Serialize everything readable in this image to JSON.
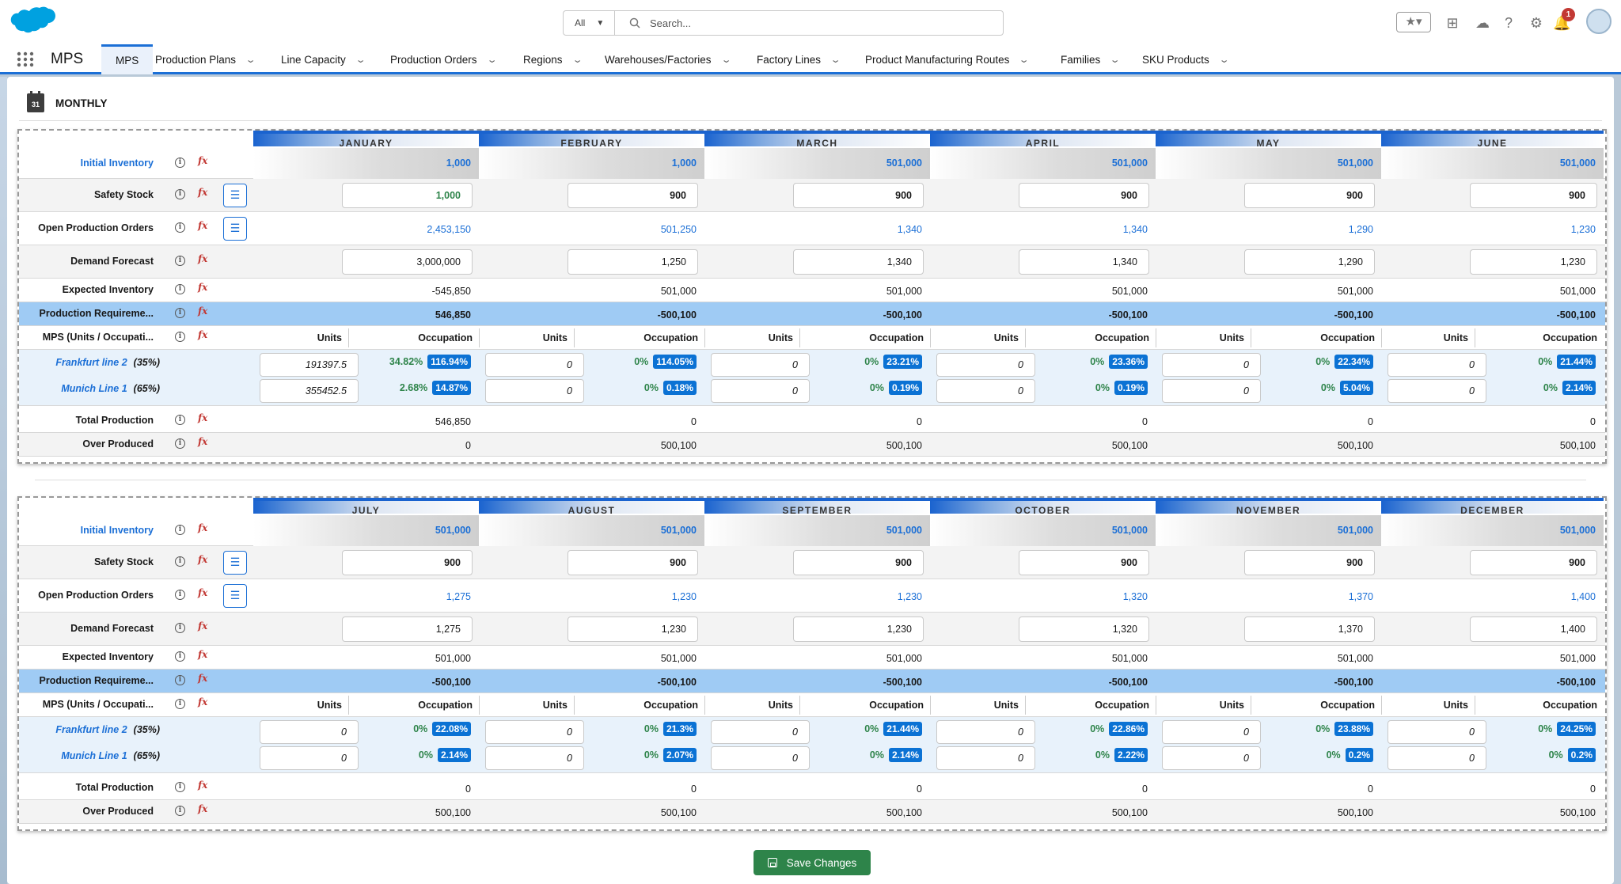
{
  "search": {
    "scope": "All",
    "placeholder": "Search..."
  },
  "notifications": {
    "count": "1"
  },
  "app": {
    "name": "MPS"
  },
  "tabs": [
    {
      "label": "MPS"
    },
    {
      "label": "Production Plans"
    },
    {
      "label": "Line Capacity"
    },
    {
      "label": "Production Orders"
    },
    {
      "label": "Regions"
    },
    {
      "label": "Warehouses/Factories"
    },
    {
      "label": "Factory Lines"
    },
    {
      "label": "Product Manufacturing Routes"
    },
    {
      "label": "Families"
    },
    {
      "label": "SKU Products"
    }
  ],
  "section": {
    "title": "MONTHLY",
    "calendar_day": "31"
  },
  "row_labels": {
    "initial_inventory": "Initial Inventory",
    "safety_stock": "Safety Stock",
    "open_production_orders": "Open Production Orders",
    "demand_forecast": "Demand Forecast",
    "expected_inventory": "Expected Inventory",
    "production_requirement": "Production Requireme...",
    "mps": "MPS (Units / Occupati...",
    "total_production": "Total Production",
    "over_produced": "Over Produced",
    "units_header": "Units",
    "occupation_header": "Occupation"
  },
  "plants": [
    {
      "name": "Frankfurt line 2",
      "share": "(35%)"
    },
    {
      "name": "Munich Line 1",
      "share": "(65%)"
    }
  ],
  "blocks": [
    {
      "months": [
        {
          "name": "JANUARY",
          "initial": "1,000",
          "safety": "1,000",
          "open": "2,453,150",
          "demand": "3,000,000",
          "expected": "-545,850",
          "req": "546,850",
          "p1_units": "191397.5",
          "p1_pct": "34.82%",
          "p1_occ": "116.94%",
          "p2_units": "355452.5",
          "p2_pct": "2.68%",
          "p2_occ": "14.87%",
          "total": "546,850",
          "over": "0"
        },
        {
          "name": "FEBRUARY",
          "initial": "1,000",
          "safety": "900",
          "open": "501,250",
          "demand": "1,250",
          "expected": "501,000",
          "req": "-500,100",
          "p1_units": "0",
          "p1_pct": "0%",
          "p1_occ": "114.05%",
          "p2_units": "0",
          "p2_pct": "0%",
          "p2_occ": "0.18%",
          "total": "0",
          "over": "500,100"
        },
        {
          "name": "MARCH",
          "initial": "501,000",
          "safety": "900",
          "open": "1,340",
          "demand": "1,340",
          "expected": "501,000",
          "req": "-500,100",
          "p1_units": "0",
          "p1_pct": "0%",
          "p1_occ": "23.21%",
          "p2_units": "0",
          "p2_pct": "0%",
          "p2_occ": "0.19%",
          "total": "0",
          "over": "500,100"
        },
        {
          "name": "APRIL",
          "initial": "501,000",
          "safety": "900",
          "open": "1,340",
          "demand": "1,340",
          "expected": "501,000",
          "req": "-500,100",
          "p1_units": "0",
          "p1_pct": "0%",
          "p1_occ": "23.36%",
          "p2_units": "0",
          "p2_pct": "0%",
          "p2_occ": "0.19%",
          "total": "0",
          "over": "500,100"
        },
        {
          "name": "MAY",
          "initial": "501,000",
          "safety": "900",
          "open": "1,290",
          "demand": "1,290",
          "expected": "501,000",
          "req": "-500,100",
          "p1_units": "0",
          "p1_pct": "0%",
          "p1_occ": "22.34%",
          "p2_units": "0",
          "p2_pct": "0%",
          "p2_occ": "5.04%",
          "total": "0",
          "over": "500,100"
        },
        {
          "name": "JUNE",
          "initial": "501,000",
          "safety": "900",
          "open": "1,230",
          "demand": "1,230",
          "expected": "501,000",
          "req": "-500,100",
          "p1_units": "0",
          "p1_pct": "0%",
          "p1_occ": "21.44%",
          "p2_units": "0",
          "p2_pct": "0%",
          "p2_occ": "2.14%",
          "total": "0",
          "over": "500,100"
        }
      ]
    },
    {
      "months": [
        {
          "name": "JULY",
          "initial": "501,000",
          "safety": "900",
          "open": "1,275",
          "demand": "1,275",
          "expected": "501,000",
          "req": "-500,100",
          "p1_units": "0",
          "p1_pct": "0%",
          "p1_occ": "22.08%",
          "p2_units": "0",
          "p2_pct": "0%",
          "p2_occ": "2.14%",
          "total": "0",
          "over": "500,100"
        },
        {
          "name": "AUGUST",
          "initial": "501,000",
          "safety": "900",
          "open": "1,230",
          "demand": "1,230",
          "expected": "501,000",
          "req": "-500,100",
          "p1_units": "0",
          "p1_pct": "0%",
          "p1_occ": "21.3%",
          "p2_units": "0",
          "p2_pct": "0%",
          "p2_occ": "2.07%",
          "total": "0",
          "over": "500,100"
        },
        {
          "name": "SEPTEMBER",
          "initial": "501,000",
          "safety": "900",
          "open": "1,230",
          "demand": "1,230",
          "expected": "501,000",
          "req": "-500,100",
          "p1_units": "0",
          "p1_pct": "0%",
          "p1_occ": "21.44%",
          "p2_units": "0",
          "p2_pct": "0%",
          "p2_occ": "2.14%",
          "total": "0",
          "over": "500,100"
        },
        {
          "name": "OCTOBER",
          "initial": "501,000",
          "safety": "900",
          "open": "1,320",
          "demand": "1,320",
          "expected": "501,000",
          "req": "-500,100",
          "p1_units": "0",
          "p1_pct": "0%",
          "p1_occ": "22.86%",
          "p2_units": "0",
          "p2_pct": "0%",
          "p2_occ": "2.22%",
          "total": "0",
          "over": "500,100"
        },
        {
          "name": "NOVEMBER",
          "initial": "501,000",
          "safety": "900",
          "open": "1,370",
          "demand": "1,370",
          "expected": "501,000",
          "req": "-500,100",
          "p1_units": "0",
          "p1_pct": "0%",
          "p1_occ": "23.88%",
          "p2_units": "0",
          "p2_pct": "0%",
          "p2_occ": "0.2%",
          "total": "0",
          "over": "500,100"
        },
        {
          "name": "DECEMBER",
          "initial": "501,000",
          "safety": "900",
          "open": "1,400",
          "demand": "1,400",
          "expected": "501,000",
          "req": "-500,100",
          "p1_units": "0",
          "p1_pct": "0%",
          "p1_occ": "24.25%",
          "p2_units": "0",
          "p2_pct": "0%",
          "p2_occ": "0.2%",
          "total": "0",
          "over": "500,100"
        }
      ]
    }
  ],
  "actions": {
    "save": "Save Changes"
  },
  "colors": {
    "brand": "#1b6fd6",
    "save": "#2e844a",
    "highlight_row": "#9fcbf4",
    "formula": "#c23934"
  }
}
